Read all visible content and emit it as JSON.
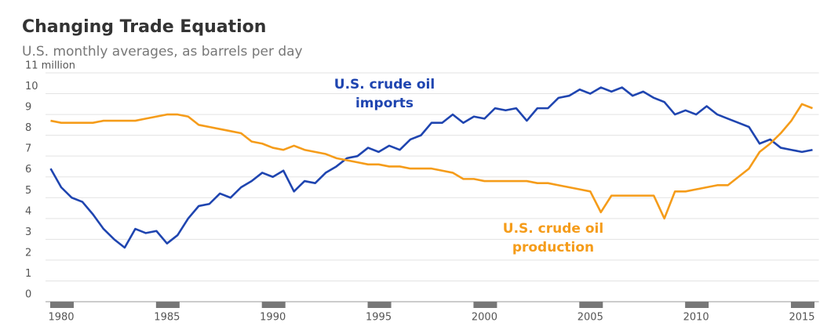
{
  "chart_data": {
    "type": "line",
    "title": "Changing Trade Equation",
    "subtitle": "U.S. monthly averages, as barrels per day",
    "x": [
      1979.5,
      1980,
      1980.5,
      1981,
      1981.5,
      1982,
      1982.5,
      1983,
      1983.5,
      1984,
      1984.5,
      1985,
      1985.5,
      1986,
      1986.5,
      1987,
      1987.5,
      1988,
      1988.5,
      1989,
      1989.5,
      1990,
      1990.5,
      1991,
      1991.5,
      1992,
      1992.5,
      1993,
      1993.5,
      1994,
      1994.5,
      1995,
      1995.5,
      1996,
      1996.5,
      1997,
      1997.5,
      1998,
      1998.5,
      1999,
      1999.5,
      2000,
      2000.5,
      2001,
      2001.5,
      2002,
      2002.5,
      2003,
      2003.5,
      2004,
      2004.5,
      2005,
      2005.5,
      2006,
      2006.5,
      2007,
      2007.5,
      2008,
      2008.5,
      2009,
      2009.5,
      2010,
      2010.5,
      2011,
      2011.5,
      2012,
      2012.5,
      2013,
      2013.5,
      2014,
      2014.5,
      2015,
      2015.5
    ],
    "series": [
      {
        "name_lines": [
          "U.S. crude oil",
          "imports"
        ],
        "color": "#1f45b0",
        "values": [
          6.4,
          5.5,
          5.0,
          4.8,
          4.2,
          3.5,
          3.0,
          2.6,
          3.5,
          3.3,
          3.4,
          2.8,
          3.2,
          4.0,
          4.6,
          4.7,
          5.2,
          5.0,
          5.5,
          5.8,
          6.2,
          6.0,
          6.3,
          5.3,
          5.8,
          5.7,
          6.2,
          6.5,
          6.9,
          7.0,
          7.4,
          7.2,
          7.5,
          7.3,
          7.8,
          8.0,
          8.6,
          8.6,
          9.0,
          8.6,
          8.9,
          8.8,
          9.3,
          9.2,
          9.3,
          8.7,
          9.3,
          9.3,
          9.8,
          9.9,
          10.2,
          10.0,
          10.3,
          10.1,
          10.3,
          9.9,
          10.1,
          9.8,
          9.6,
          9.0,
          9.2,
          9.0,
          9.4,
          9.0,
          8.8,
          8.6,
          8.4,
          7.6,
          7.8,
          7.4,
          7.3,
          7.2,
          7.3
        ]
      },
      {
        "name_lines": [
          "U.S. crude oil",
          "production"
        ],
        "color": "#f59c1a",
        "values": [
          8.7,
          8.6,
          8.6,
          8.6,
          8.6,
          8.7,
          8.7,
          8.7,
          8.7,
          8.8,
          8.9,
          9.0,
          9.0,
          8.9,
          8.5,
          8.4,
          8.3,
          8.2,
          8.1,
          7.7,
          7.6,
          7.4,
          7.3,
          7.5,
          7.3,
          7.2,
          7.1,
          6.9,
          6.8,
          6.7,
          6.6,
          6.6,
          6.5,
          6.5,
          6.4,
          6.4,
          6.4,
          6.3,
          6.2,
          5.9,
          5.9,
          5.8,
          5.8,
          5.8,
          5.8,
          5.8,
          5.7,
          5.7,
          5.6,
          5.5,
          5.4,
          5.3,
          4.3,
          5.1,
          5.1,
          5.1,
          5.1,
          5.1,
          4.0,
          5.3,
          5.3,
          5.4,
          5.5,
          5.6,
          5.6,
          6.0,
          6.4,
          7.2,
          7.6,
          8.1,
          8.7,
          9.5,
          9.3
        ]
      }
    ],
    "xlim": [
      1979.5,
      2015.8
    ],
    "xticks": [
      1980,
      1985,
      1990,
      1995,
      2000,
      2005,
      2010,
      2015
    ],
    "ylim": [
      0,
      11
    ],
    "yticks": [
      0,
      1,
      2,
      3,
      4,
      5,
      6,
      7,
      8,
      9,
      10,
      {
        "value": 11,
        "label": "11 million"
      }
    ],
    "grid": true
  }
}
